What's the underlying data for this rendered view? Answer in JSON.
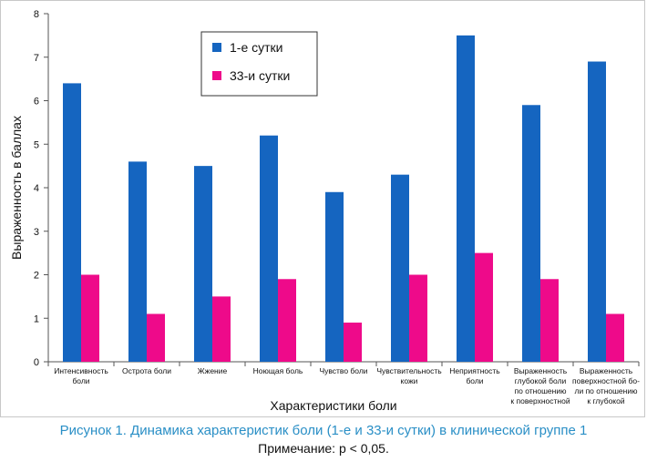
{
  "chart_data": {
    "type": "bar",
    "categories": [
      [
        "Интенсивность",
        "боли"
      ],
      [
        "Острота боли"
      ],
      [
        "Жжение"
      ],
      [
        "Ноющая боль"
      ],
      [
        "Чувство боли"
      ],
      [
        "Чувствительность",
        "кожи"
      ],
      [
        "Неприятность",
        "боли"
      ],
      [
        "Выраженность",
        "глубокой боли",
        "по отношению",
        "к поверхностной"
      ],
      [
        "Выраженность",
        "поверхностной бо-",
        "ли по отношению",
        "к глубокой"
      ]
    ],
    "series": [
      {
        "name": "1-е сутки",
        "color": "#1565c0",
        "values": [
          6.4,
          4.6,
          4.5,
          5.2,
          3.9,
          4.3,
          7.5,
          5.9,
          6.9
        ]
      },
      {
        "name": "33-и сутки",
        "color": "#ee0a8a",
        "values": [
          2.0,
          1.1,
          1.5,
          1.9,
          0.9,
          2.0,
          2.5,
          1.9,
          1.1
        ]
      }
    ],
    "xlabel": "Характеристики боли",
    "ylabel": "Выраженность в баллах",
    "ylim": [
      0,
      8
    ],
    "yticks": [
      0,
      1,
      2,
      3,
      4,
      5,
      6,
      7,
      8
    ],
    "grid": false,
    "legend_position": "top-center"
  },
  "caption": {
    "line1": "Рисунок 1.  Динамика характеристик боли (1-е и 33-и сутки) в клинической группе 1",
    "line2": "Примечание:  p < 0,05."
  }
}
